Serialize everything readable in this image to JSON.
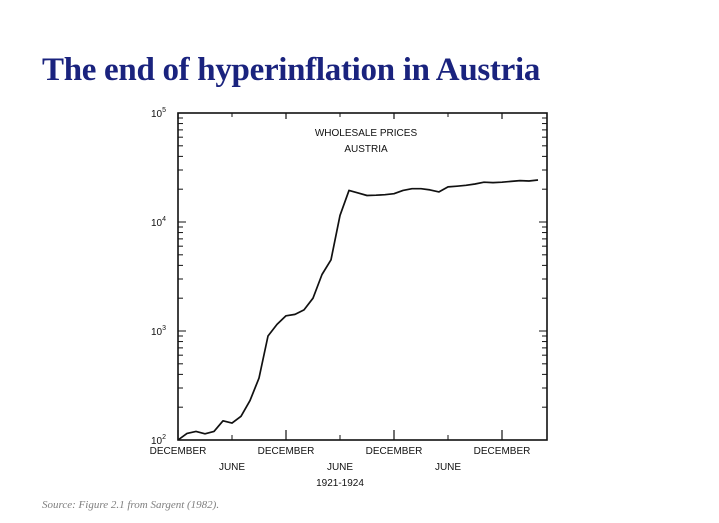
{
  "slide": {
    "title": "The end of hyperinflation in Austria",
    "source": "Source: Figure 2.1 from Sargent (1982)."
  },
  "colors": {
    "title": "#1a237e",
    "ink": "#111111",
    "source": "#7f7f7f"
  },
  "chart_data": {
    "type": "line",
    "title_lines": [
      "WHOLESALE PRICES",
      "AUSTRIA"
    ],
    "xlabel": "1921-1924",
    "ylabel": "",
    "scale_y": "log",
    "ylim": [
      100,
      100000
    ],
    "y_ticks": [
      {
        "base": "10",
        "exp": "2",
        "value": 100
      },
      {
        "base": "10",
        "exp": "3",
        "value": 1000
      },
      {
        "base": "10",
        "exp": "4",
        "value": 10000
      },
      {
        "base": "10",
        "exp": "5",
        "value": 100000
      }
    ],
    "x_ticks_major": [
      {
        "label": "DECEMBER",
        "date": "1920-12"
      },
      {
        "label": "DECEMBER",
        "date": "1921-12"
      },
      {
        "label": "DECEMBER",
        "date": "1922-12"
      },
      {
        "label": "DECEMBER",
        "date": "1923-12"
      }
    ],
    "x_ticks_minor": [
      {
        "label": "JUNE",
        "date": "1921-06"
      },
      {
        "label": "JUNE",
        "date": "1922-06"
      },
      {
        "label": "JUNE",
        "date": "1923-06"
      }
    ],
    "xlim": [
      "1920-12",
      "1924-05"
    ],
    "grid": false,
    "series": [
      {
        "name": "",
        "points": [
          [
            "1920-12",
            100
          ],
          [
            "1921-01",
            115
          ],
          [
            "1921-02",
            120
          ],
          [
            "1921-03",
            114
          ],
          [
            "1921-04",
            120
          ],
          [
            "1921-05",
            150
          ],
          [
            "1921-06",
            143
          ],
          [
            "1921-07",
            165
          ],
          [
            "1921-08",
            230
          ],
          [
            "1921-09",
            370
          ],
          [
            "1921-10",
            900
          ],
          [
            "1921-11",
            1150
          ],
          [
            "1921-12",
            1380
          ],
          [
            "1922-01",
            1420
          ],
          [
            "1922-02",
            1560
          ],
          [
            "1922-03",
            2000
          ],
          [
            "1922-04",
            3300
          ],
          [
            "1922-05",
            4500
          ],
          [
            "1922-06",
            11500
          ],
          [
            "1922-07",
            19500
          ],
          [
            "1922-08",
            18500
          ],
          [
            "1922-09",
            17500
          ],
          [
            "1922-10",
            17600
          ],
          [
            "1922-11",
            17800
          ],
          [
            "1922-12",
            18200
          ],
          [
            "1923-01",
            19500
          ],
          [
            "1923-02",
            20200
          ],
          [
            "1923-03",
            20200
          ],
          [
            "1923-04",
            19700
          ],
          [
            "1923-05",
            18900
          ],
          [
            "1923-06",
            21000
          ],
          [
            "1923-07",
            21300
          ],
          [
            "1923-08",
            21700
          ],
          [
            "1923-09",
            22300
          ],
          [
            "1923-10",
            23200
          ],
          [
            "1923-11",
            23000
          ],
          [
            "1923-12",
            23200
          ],
          [
            "1924-01",
            23600
          ],
          [
            "1924-02",
            24000
          ],
          [
            "1924-03",
            23800
          ],
          [
            "1924-04",
            24300
          ]
        ]
      }
    ]
  }
}
